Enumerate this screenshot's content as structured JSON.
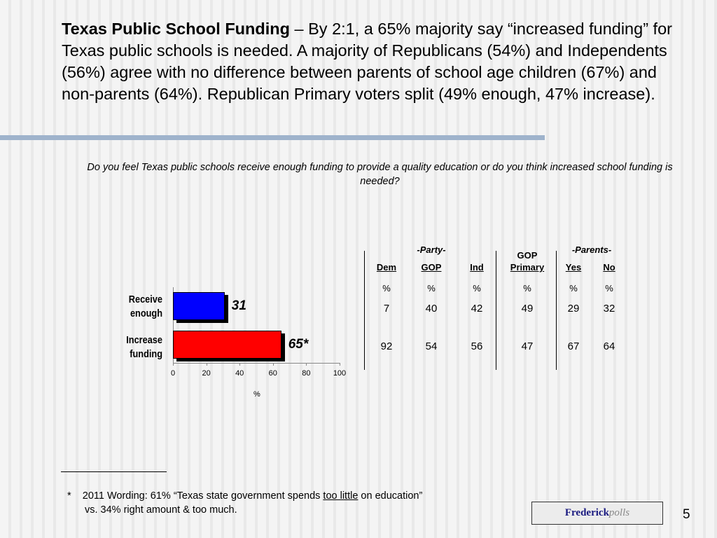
{
  "title": {
    "bold": "Texas Public School Funding",
    "rest": " – By 2:1, a 65% majority say “increased funding” for Texas public schools is needed.  A majority of Republicans (54%) and Independents (56%) agree with no difference between parents of school age children (67%) and non-parents (64%).  Republican Primary voters split (49% enough, 47% increase)."
  },
  "question": "Do you feel Texas public schools receive enough funding to provide a quality education or do you think increased school funding is needed?",
  "chart_data": {
    "type": "bar",
    "orientation": "horizontal",
    "categories": [
      "Receive enough",
      "Increase funding"
    ],
    "values": [
      31,
      65
    ],
    "data_labels": [
      "31",
      "65*"
    ],
    "colors": [
      "#0000ff",
      "#ff0000"
    ],
    "xlabel": "%",
    "xlim": [
      0,
      100
    ],
    "xticks": [
      "0",
      "20",
      "40",
      "60",
      "80",
      "100"
    ],
    "grid": false
  },
  "table": {
    "group_party": "-Party-",
    "group_parents": "-Parents-",
    "columns": [
      "Dem",
      "GOP",
      "Ind",
      "GOP Primary",
      "Yes",
      "No"
    ],
    "unit": "%",
    "rows": [
      [
        "7",
        "40",
        "42",
        "49",
        "29",
        "32"
      ],
      [
        "92",
        "54",
        "56",
        "47",
        "67",
        "64"
      ]
    ]
  },
  "footnote": {
    "marker": "*",
    "pre": "2011 Wording:  61% “Texas state government spends ",
    "underlined": "too little",
    "post": " on education”",
    "line2": "vs. 34% right amount & too much."
  },
  "logo": {
    "brand": "Frederick",
    "suffix": "polls"
  },
  "page_number": "5"
}
